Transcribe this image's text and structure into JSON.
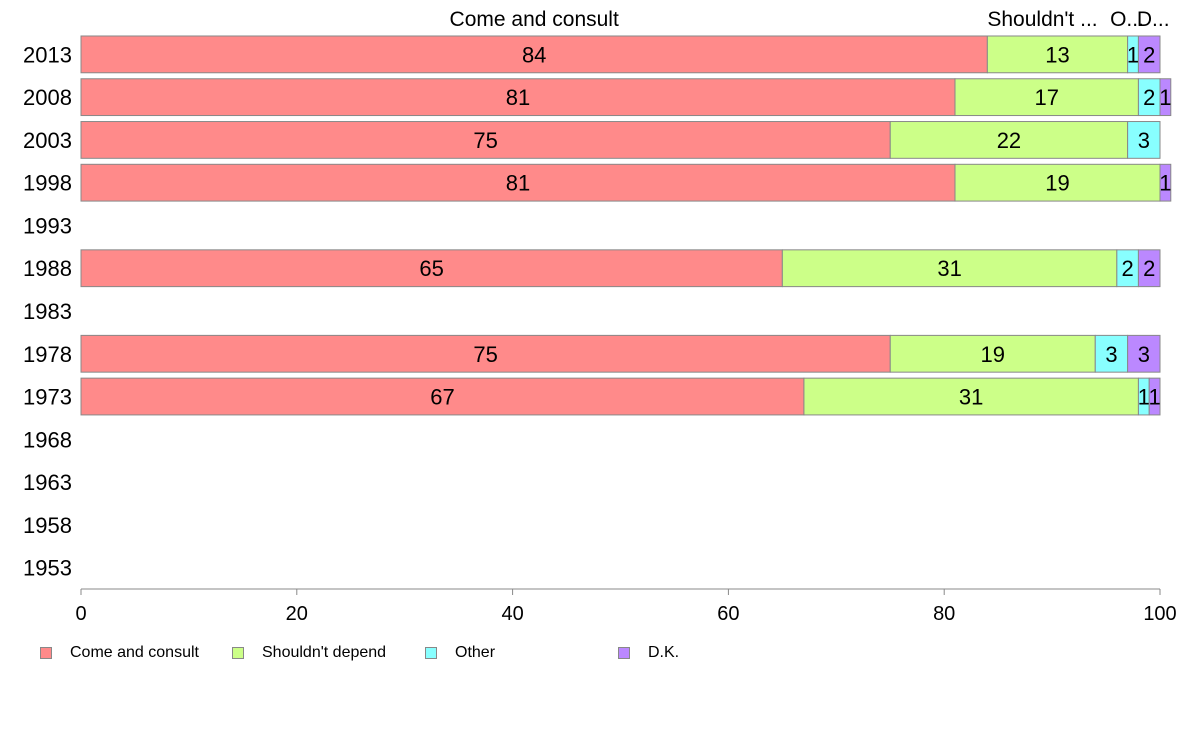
{
  "chart_data": {
    "type": "bar",
    "orientation": "horizontal",
    "stacked": true,
    "categories": [
      "2013",
      "2008",
      "2003",
      "1998",
      "1993",
      "1988",
      "1983",
      "1978",
      "1973",
      "1968",
      "1963",
      "1958",
      "1953"
    ],
    "series": [
      {
        "name": "Come and consult",
        "color": "#ff8a8a",
        "values": [
          84,
          81,
          75,
          81,
          null,
          65,
          null,
          75,
          67,
          null,
          null,
          null,
          null
        ]
      },
      {
        "name": "Shouldn't depend",
        "color": "#ccff88",
        "values": [
          13,
          17,
          22,
          19,
          null,
          31,
          null,
          19,
          31,
          null,
          null,
          null,
          null
        ]
      },
      {
        "name": "Other",
        "color": "#88ffff",
        "values": [
          1,
          2,
          3,
          0,
          null,
          2,
          null,
          3,
          1,
          null,
          null,
          null,
          null
        ]
      },
      {
        "name": "D.K.",
        "color": "#bb88ff",
        "values": [
          2,
          1,
          0,
          1,
          null,
          2,
          null,
          3,
          1,
          null,
          null,
          null,
          null
        ]
      }
    ],
    "top_labels": [
      "Come and consult",
      "Shouldn't ...",
      "O...",
      "D..."
    ],
    "xlim": [
      0,
      100
    ],
    "xticks": [
      0,
      20,
      40,
      60,
      80,
      100
    ],
    "grid": false,
    "legend_position": "bottom"
  }
}
